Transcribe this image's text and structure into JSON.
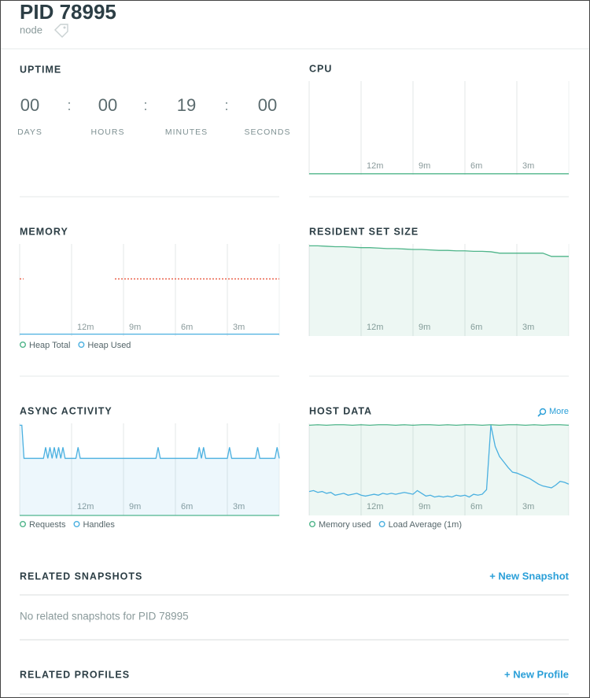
{
  "header": {
    "title": "PID 78995",
    "subtitle": "node"
  },
  "uptime": {
    "title": "UPTIME",
    "separator": ":",
    "values": [
      "00",
      "00",
      "19",
      "00"
    ],
    "units": [
      "DAYS",
      "HOURS",
      "MINUTES",
      "SECONDS"
    ]
  },
  "charts": [
    {
      "title": "CPU",
      "type": "line",
      "xticks": [
        "12m",
        "9m",
        "6m",
        "3m"
      ],
      "ylim": [
        0,
        100
      ],
      "series": [
        {
          "color": "#4fb58a",
          "values": [
            1,
            1,
            1,
            1,
            1,
            1,
            1,
            1,
            1,
            1,
            1,
            1,
            1,
            1,
            1,
            1,
            1,
            1,
            1,
            1,
            1
          ]
        }
      ]
    },
    {
      "title": "MEMORY",
      "type": "line",
      "xticks": [
        "12m",
        "9m",
        "6m",
        "3m"
      ],
      "ylim": [
        0,
        100
      ],
      "series": [
        {
          "name": "Heap Total",
          "color": "#e8553e",
          "marker_color": "#4fb58a",
          "dashed": true,
          "values": [
            62,
            null,
            null,
            null,
            null,
            null,
            null,
            null,
            null,
            null,
            null,
            62,
            62,
            62,
            62,
            62,
            62,
            62,
            62,
            62,
            62,
            62,
            62,
            62,
            62,
            62,
            62,
            62,
            62,
            62,
            62
          ]
        },
        {
          "name": "Heap Used",
          "color": "#4ab0e0",
          "marker_color": "#4ab0e0",
          "values": [
            2,
            2,
            2,
            2,
            2,
            2,
            2,
            2,
            2,
            2,
            2,
            2,
            2,
            2,
            2,
            2,
            2,
            2,
            2,
            2,
            2
          ]
        }
      ]
    },
    {
      "title": "RESIDENT SET SIZE",
      "type": "line",
      "xticks": [
        "12m",
        "9m",
        "6m",
        "3m"
      ],
      "ylim": [
        0,
        100
      ],
      "series": [
        {
          "color": "#4fb58a",
          "area": true,
          "values": [
            98,
            98,
            97.5,
            97,
            97,
            96.5,
            96,
            96,
            95.5,
            95,
            95,
            94.5,
            94,
            94,
            93.5,
            93,
            93,
            92.5,
            92.5,
            92,
            92,
            91.5,
            90,
            90,
            90,
            90,
            90,
            90,
            86.5,
            86.5,
            86.5
          ]
        }
      ]
    },
    {
      "title": "ASYNC ACTIVITY",
      "type": "line",
      "xticks": [
        "12m",
        "9m",
        "6m",
        "3m"
      ],
      "ylim": [
        0,
        100
      ],
      "series": [
        {
          "name": "Requests",
          "color": "#4fb58a",
          "marker_color": "#4fb58a",
          "values": [
            0,
            0,
            0,
            0,
            0,
            0,
            0,
            0,
            0,
            0,
            0
          ]
        },
        {
          "name": "Handles",
          "color": "#4ab0e0",
          "marker_color": "#4ab0e0",
          "area": true,
          "values": [
            98,
            98,
            62,
            62,
            62,
            62,
            62,
            62,
            62,
            62,
            62,
            62,
            74,
            62,
            74,
            62,
            74,
            62,
            74,
            62,
            74,
            62,
            62,
            62,
            62,
            62,
            62,
            74,
            62,
            62,
            62,
            62,
            62,
            62,
            62,
            62,
            62,
            62,
            62,
            62,
            62,
            62,
            62,
            62,
            62,
            62,
            62,
            62,
            62,
            62,
            62,
            62,
            62,
            62,
            62,
            62,
            62,
            62,
            62,
            62,
            62,
            62,
            62,
            62,
            74,
            62,
            62,
            62,
            62,
            62,
            62,
            62,
            62,
            62,
            62,
            62,
            62,
            62,
            62,
            62,
            62,
            62,
            62,
            74,
            62,
            74,
            62,
            62,
            62,
            62,
            62,
            62,
            62,
            62,
            62,
            62,
            62,
            74,
            62,
            62,
            62,
            62,
            62,
            62,
            62,
            62,
            62,
            62,
            62,
            62,
            74,
            62,
            62,
            62,
            62,
            62,
            62,
            62,
            62,
            74,
            62
          ]
        }
      ]
    },
    {
      "title": "HOST DATA",
      "type": "line",
      "action": "More",
      "xticks": [
        "12m",
        "9m",
        "6m",
        "3m"
      ],
      "ylim": [
        0,
        100
      ],
      "series": [
        {
          "name": "Memory used",
          "color": "#4fb58a",
          "marker_color": "#4fb58a",
          "area": true,
          "values": [
            98,
            98.5,
            98,
            98.5,
            98.5,
            98,
            98.5,
            98,
            98.5,
            98.5,
            98,
            98.5,
            98,
            98.5,
            98.5,
            98,
            98.5,
            98,
            98.5,
            98.5,
            98,
            98.5,
            98,
            98.5,
            98.5,
            98,
            98.5,
            98,
            98.5,
            98.5,
            98
          ]
        },
        {
          "name": "Load Average (1m)",
          "color": "#4ab0e0",
          "marker_color": "#4ab0e0",
          "values": [
            26,
            27,
            25,
            26,
            24,
            25,
            22,
            23,
            24,
            22,
            23,
            24,
            22,
            21,
            22,
            23,
            22,
            24,
            23,
            24,
            23,
            24,
            25,
            24,
            23,
            27,
            24,
            21,
            22,
            20,
            21,
            20,
            21,
            20,
            22,
            21,
            22,
            20,
            23,
            22,
            23,
            28,
            98,
            75,
            64,
            58,
            52,
            47,
            46,
            44,
            42,
            40,
            37,
            34,
            32,
            31,
            30,
            33,
            37,
            36,
            34
          ]
        }
      ]
    }
  ],
  "related": [
    {
      "title": "RELATED SNAPSHOTS",
      "action": "+ New Snapshot",
      "empty_message": "No related snapshots for PID 78995"
    },
    {
      "title": "RELATED PROFILES",
      "action": "+ New Profile"
    }
  ]
}
